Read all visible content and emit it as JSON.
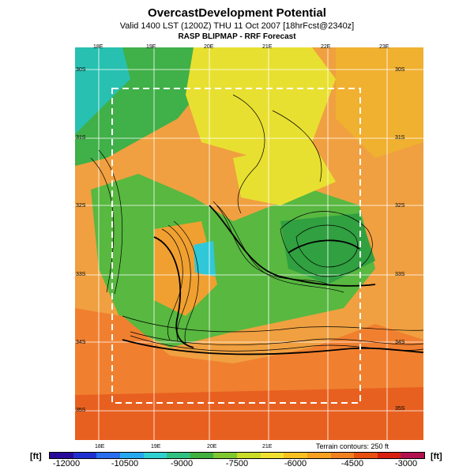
{
  "header": {
    "title": "OvercastDevelopment Potential",
    "subtitle": "Valid 1400 LST (1200Z) THU 11 Oct 2007 [18hrFcst@2340z]",
    "source": "RASP BLIPMAP - RRF Forecast"
  },
  "map": {
    "top_lon_ticks": [
      "18E",
      "19E",
      "20E",
      "21E",
      "22E",
      "23E"
    ],
    "bottom_lon_ticks": [
      "18E",
      "19E",
      "20E",
      "21E"
    ],
    "lat_ticks": [
      "30S",
      "31S",
      "32S",
      "33S",
      "34S",
      "35S"
    ],
    "terrain_note": "Terrain contours: 250 ft"
  },
  "colorbar": {
    "unit_left": "[ft]",
    "unit_right": "[ft]",
    "labels": [
      "-12000",
      "-10500",
      "-9000",
      "-7500",
      "-6000",
      "-4500",
      "-3000"
    ],
    "colors": [
      "#2a0a9a",
      "#2030d0",
      "#2a6ef0",
      "#28a8f0",
      "#30d0d0",
      "#30c080",
      "#40b040",
      "#80c830",
      "#c8dc28",
      "#f0e030",
      "#f8c020",
      "#f8a020",
      "#f08020",
      "#e85010",
      "#d82010",
      "#b01050"
    ]
  },
  "colors": {
    "orange": "#f0a040",
    "yellow": "#f0e030",
    "green": "#50b840",
    "cyan": "#30c8d8"
  }
}
